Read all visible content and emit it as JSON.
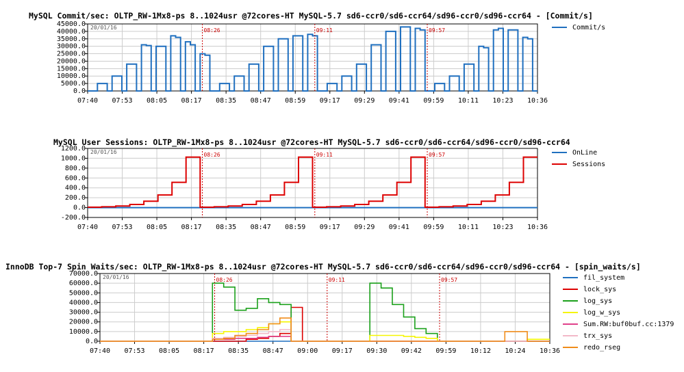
{
  "chart_data": [
    {
      "type": "line",
      "title": "MySQL Commit/sec: OLTP_RW-1Mx8-ps 8..1024usr @72cores-HT MySQL-5.7 sd6-ccr0/sd6-ccr64/sd96-ccr0/sd96-ccr64 - [Commit/s]",
      "date_stamp": "20/01/16",
      "x_ticks": [
        "07:40",
        "07:53",
        "08:05",
        "08:17",
        "08:35",
        "08:47",
        "08:59",
        "09:17",
        "09:29",
        "09:41",
        "09:59",
        "10:11",
        "10:23",
        "10:36"
      ],
      "y_ticks": [
        "0.0",
        "5000.0",
        "10000.0",
        "15000.0",
        "20000.0",
        "25000.0",
        "30000.0",
        "35000.0",
        "40000.0",
        "45000.0"
      ],
      "ylim": [
        0,
        45000
      ],
      "grid": true,
      "legend_position": "right",
      "markers": [
        "08:26",
        "09:11",
        "09:57"
      ],
      "series": [
        {
          "name": "Commit/s",
          "color": "#1f6fbf",
          "values": [
            0,
            0,
            5000,
            5000,
            0,
            10000,
            10000,
            0,
            18000,
            18000,
            0,
            31000,
            30500,
            0,
            30000,
            30000,
            0,
            37000,
            36000,
            0,
            33000,
            31000,
            0,
            25000,
            24000,
            0,
            0,
            5000,
            5000,
            0,
            10000,
            10000,
            0,
            18000,
            18000,
            0,
            30000,
            30000,
            0,
            35000,
            35000,
            0,
            37000,
            37000,
            0,
            38000,
            37000,
            0,
            0,
            5000,
            5000,
            0,
            10000,
            10000,
            0,
            18000,
            18000,
            0,
            31000,
            31000,
            0,
            40000,
            40000,
            0,
            43000,
            43000,
            0,
            42000,
            41000,
            0,
            0,
            5000,
            5000,
            0,
            10000,
            10000,
            0,
            18000,
            18000,
            0,
            30000,
            29000,
            0,
            41000,
            42000,
            0,
            41000,
            41000,
            0,
            36000,
            35000,
            0
          ]
        }
      ]
    },
    {
      "type": "line",
      "title": "MySQL User Sessions: OLTP_RW-1Mx8-ps 8..1024usr @72cores-HT MySQL-5.7 sd6-ccr0/sd6-ccr64/sd96-ccr0/sd96-ccr64",
      "date_stamp": "20/01/16",
      "x_ticks": [
        "07:40",
        "07:53",
        "08:05",
        "08:17",
        "08:35",
        "08:47",
        "08:59",
        "09:17",
        "09:29",
        "09:41",
        "09:59",
        "10:11",
        "10:23",
        "10:36"
      ],
      "y_ticks": [
        "-200.0",
        "0.0",
        "200.0",
        "400.0",
        "600.0",
        "800.0",
        "1000.0",
        "1200.0"
      ],
      "ylim": [
        -200,
        1200
      ],
      "grid": true,
      "legend_position": "right",
      "markers": [
        "08:26",
        "09:11",
        "09:57"
      ],
      "series": [
        {
          "name": "OnLine",
          "color": "#1f6fbf",
          "values": [
            0,
            0,
            0,
            0
          ]
        },
        {
          "name": "Sessions",
          "color": "#dd0000",
          "values": [
            8,
            16,
            32,
            64,
            128,
            256,
            512,
            1024,
            8,
            16,
            32,
            64,
            128,
            256,
            512,
            1024,
            8,
            16,
            32,
            64,
            128,
            256,
            512,
            1024,
            8,
            16,
            32,
            64,
            128,
            256,
            512,
            1024
          ]
        }
      ]
    },
    {
      "type": "line",
      "title": "InnoDB Top-7 Spin Waits/sec: OLTP_RW-1Mx8-ps 8..1024usr @72cores-HT MySQL-5.7 sd6-ccr0/sd6-ccr64/sd96-ccr0/sd96-ccr64 - [spin_waits/s]",
      "date_stamp": "20/01/16",
      "x_ticks": [
        "07:40",
        "07:53",
        "08:05",
        "08:17",
        "08:35",
        "08:47",
        "09:00",
        "09:17",
        "09:30",
        "09:42",
        "09:59",
        "10:12",
        "10:24",
        "10:36"
      ],
      "y_ticks": [
        "0.0",
        "10000.0",
        "20000.0",
        "30000.0",
        "40000.0",
        "50000.0",
        "60000.0",
        "70000.0"
      ],
      "ylim": [
        0,
        70000
      ],
      "grid": true,
      "legend_position": "right",
      "markers": [
        "08:26",
        "09:11",
        "09:57"
      ],
      "series": [
        {
          "name": "fil_system",
          "color": "#1f6fbf",
          "values": [
            0,
            0,
            0,
            0,
            0,
            0,
            0,
            0,
            0,
            0,
            0,
            0,
            0,
            0,
            0,
            0,
            0,
            0,
            0,
            0,
            0,
            0,
            0,
            0,
            0,
            0,
            0,
            0,
            0,
            0,
            0,
            0,
            0,
            0,
            0,
            0,
            0,
            0,
            0,
            0
          ]
        },
        {
          "name": "lock_sys",
          "color": "#dd0000",
          "values": [
            0,
            0,
            0,
            0,
            0,
            0,
            0,
            0,
            0,
            0,
            0,
            0,
            0,
            2000,
            3000,
            5000,
            8000,
            35000,
            0,
            0,
            0,
            0,
            0,
            0,
            0,
            0,
            0,
            0,
            0,
            0,
            0,
            0,
            0,
            0,
            0,
            0,
            0,
            0,
            0,
            0
          ]
        },
        {
          "name": "log_sys",
          "color": "#1aa01a",
          "values": [
            0,
            0,
            0,
            0,
            0,
            0,
            0,
            0,
            0,
            0,
            60000,
            56000,
            32000,
            34000,
            44000,
            40000,
            38000,
            0,
            0,
            0,
            0,
            0,
            0,
            0,
            60000,
            55000,
            38000,
            25000,
            13000,
            8000,
            0,
            0,
            0,
            0,
            0,
            0,
            0,
            0,
            0,
            0
          ]
        },
        {
          "name": "log_w_sys",
          "color": "#f5f500",
          "values": [
            0,
            0,
            0,
            0,
            0,
            0,
            0,
            0,
            0,
            0,
            8000,
            10000,
            10000,
            12000,
            14000,
            18000,
            20000,
            0,
            0,
            0,
            0,
            0,
            0,
            0,
            6000,
            6000,
            6000,
            5000,
            4000,
            3000,
            0,
            0,
            0,
            0,
            0,
            0,
            0,
            0,
            2000,
            2000
          ]
        },
        {
          "name": "Sum.RW:buf0buf.cc:1379",
          "color": "#e0408a",
          "values": [
            0,
            0,
            0,
            0,
            0,
            0,
            0,
            0,
            0,
            0,
            2000,
            2000,
            3000,
            3000,
            4000,
            5000,
            5000,
            0,
            0,
            0,
            0,
            0,
            0,
            0,
            0,
            0,
            0,
            0,
            0,
            0,
            0,
            0,
            0,
            0,
            0,
            0,
            0,
            0,
            0,
            0
          ]
        },
        {
          "name": "trx_sys",
          "color": "#f2b8c8",
          "values": [
            0,
            0,
            0,
            0,
            0,
            0,
            0,
            0,
            0,
            0,
            3000,
            4000,
            5000,
            6000,
            8000,
            10000,
            12000,
            0,
            0,
            0,
            0,
            0,
            0,
            0,
            0,
            0,
            0,
            0,
            0,
            0,
            0,
            0,
            0,
            0,
            0,
            0,
            0,
            0,
            0,
            0
          ]
        },
        {
          "name": "redo_rseg",
          "color": "#f08c1a",
          "values": [
            0,
            0,
            0,
            0,
            0,
            0,
            0,
            0,
            0,
            0,
            2000,
            3000,
            6000,
            8000,
            12000,
            18000,
            24000,
            0,
            0,
            0,
            0,
            0,
            0,
            0,
            0,
            0,
            0,
            0,
            0,
            0,
            0,
            0,
            0,
            0,
            0,
            0,
            10000,
            10000,
            0,
            0
          ]
        }
      ]
    }
  ]
}
